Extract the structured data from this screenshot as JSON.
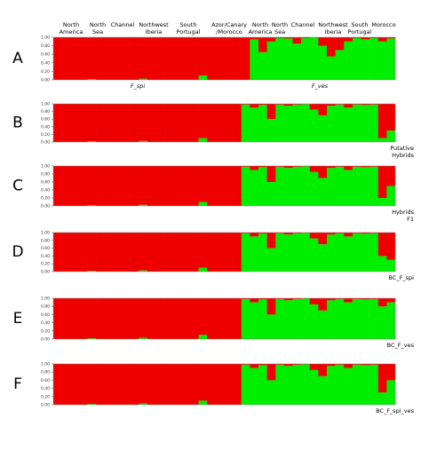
{
  "header": {
    "populations": [
      {
        "lines": [
          "North",
          "America"
        ]
      },
      {
        "lines": [
          "North",
          "Sea"
        ]
      },
      {
        "lines": [
          "Channel"
        ]
      },
      {
        "lines": [
          "Northwest",
          "Iberia"
        ]
      },
      {
        "lines": [
          "South",
          "Portugal"
        ]
      },
      {
        "lines": [
          "Azor/Canary",
          "/Morocco"
        ]
      },
      {
        "lines": [
          "North",
          "America"
        ]
      },
      {
        "lines": [
          "North",
          "Sea"
        ]
      },
      {
        "lines": [
          "Channel"
        ]
      },
      {
        "lines": [
          "Northwest",
          "Iberia"
        ]
      },
      {
        "lines": [
          "South",
          "Portugal"
        ]
      },
      {
        "lines": [
          "Morocco"
        ]
      }
    ]
  },
  "chart_data": [
    {
      "type": "bar",
      "stacked": true,
      "panel_label": "A",
      "group_labels": [
        {
          "lines": [
            "F_spi"
          ]
        },
        {
          "lines": [
            "F_ves"
          ]
        }
      ],
      "ylim": [
        0,
        1
      ],
      "yticks": [
        {
          "value": 0,
          "label": "0.00"
        },
        {
          "value": 0.2,
          "label": "0.20"
        },
        {
          "value": 0.4,
          "label": "0.40"
        },
        {
          "value": 0.6,
          "label": "0.60"
        },
        {
          "value": 0.8,
          "label": "0.80"
        },
        {
          "value": 1,
          "label": "1.00"
        }
      ],
      "series": [
        {
          "color": "#00ee00",
          "values": [
            0,
            0,
            0,
            0,
            0.02,
            0,
            0,
            0,
            0,
            0,
            0.03,
            0,
            0,
            0,
            0,
            0,
            0,
            0.1,
            0,
            0,
            0,
            0,
            0,
            0.95,
            0.65,
            0.9,
            0.98,
            0.97,
            0.85,
            0.98,
            0.99,
            0.8,
            0.55,
            0.7,
            0.9,
            0.98,
            0.95,
            0.98,
            0.9,
            0.97
          ]
        },
        {
          "color": "#ee0000",
          "values": [
            1,
            1,
            1,
            1,
            0.98,
            1,
            1,
            1,
            1,
            1,
            0.97,
            1,
            1,
            1,
            1,
            1,
            1,
            0.9,
            1,
            1,
            1,
            1,
            1,
            0.05,
            0.35,
            0.1,
            0.02,
            0.03,
            0.15,
            0.02,
            0.01,
            0.2,
            0.45,
            0.3,
            0.1,
            0.02,
            0.05,
            0.02,
            0.1,
            0.03
          ]
        }
      ]
    },
    {
      "type": "bar",
      "stacked": true,
      "panel_label": "B",
      "group_labels": [
        {
          "lines": [
            "Putative",
            "Hybrids"
          ]
        }
      ],
      "ylim": [
        0,
        1
      ],
      "yticks": [
        {
          "value": 0,
          "label": "0.00"
        },
        {
          "value": 0.2,
          "label": "0.20"
        },
        {
          "value": 0.4,
          "label": "0.40"
        },
        {
          "value": 0.6,
          "label": "0.60"
        },
        {
          "value": 0.8,
          "label": "0.80"
        },
        {
          "value": 1,
          "label": "1.00"
        }
      ],
      "series": [
        {
          "color": "#00ee00",
          "values": [
            0,
            0,
            0,
            0,
            0.02,
            0,
            0,
            0,
            0,
            0,
            0.03,
            0,
            0,
            0,
            0,
            0,
            0,
            0.1,
            0,
            0,
            0,
            0,
            0.98,
            0.9,
            0.97,
            0.6,
            0.98,
            0.95,
            0.98,
            0.99,
            0.85,
            0.7,
            0.95,
            0.98,
            0.9,
            0.98,
            0.97,
            0.98,
            0.1,
            0.3
          ]
        },
        {
          "color": "#ee0000",
          "values": [
            1,
            1,
            1,
            1,
            0.98,
            1,
            1,
            1,
            1,
            1,
            0.97,
            1,
            1,
            1,
            1,
            1,
            1,
            0.9,
            1,
            1,
            1,
            1,
            0.02,
            0.1,
            0.03,
            0.4,
            0.02,
            0.05,
            0.02,
            0.01,
            0.15,
            0.3,
            0.05,
            0.02,
            0.1,
            0.02,
            0.03,
            0.02,
            0.9,
            0.7
          ]
        }
      ]
    },
    {
      "type": "bar",
      "stacked": true,
      "panel_label": "C",
      "group_labels": [
        {
          "lines": [
            "Hybrids",
            "F1"
          ]
        }
      ],
      "ylim": [
        0,
        1
      ],
      "yticks": [
        {
          "value": 0,
          "label": "0.00"
        },
        {
          "value": 0.2,
          "label": "0.20"
        },
        {
          "value": 0.4,
          "label": "0.40"
        },
        {
          "value": 0.6,
          "label": "0.60"
        },
        {
          "value": 0.8,
          "label": "0.80"
        },
        {
          "value": 1,
          "label": "1.00"
        }
      ],
      "series": [
        {
          "color": "#00ee00",
          "values": [
            0,
            0,
            0,
            0,
            0.02,
            0,
            0,
            0,
            0,
            0,
            0.03,
            0,
            0,
            0,
            0,
            0,
            0,
            0.1,
            0,
            0,
            0,
            0,
            0.98,
            0.9,
            0.97,
            0.6,
            0.98,
            0.95,
            0.98,
            0.99,
            0.85,
            0.7,
            0.95,
            0.98,
            0.9,
            0.98,
            0.97,
            0.98,
            0.2,
            0.5
          ]
        },
        {
          "color": "#ee0000",
          "values": [
            1,
            1,
            1,
            1,
            0.98,
            1,
            1,
            1,
            1,
            1,
            0.97,
            1,
            1,
            1,
            1,
            1,
            1,
            0.9,
            1,
            1,
            1,
            1,
            0.02,
            0.1,
            0.03,
            0.4,
            0.02,
            0.05,
            0.02,
            0.01,
            0.15,
            0.3,
            0.05,
            0.02,
            0.1,
            0.02,
            0.03,
            0.02,
            0.8,
            0.5
          ]
        }
      ]
    },
    {
      "type": "bar",
      "stacked": true,
      "panel_label": "D",
      "group_labels": [
        {
          "lines": [
            "BC_F_spi"
          ]
        }
      ],
      "ylim": [
        0,
        1
      ],
      "yticks": [
        {
          "value": 0,
          "label": "0.00"
        },
        {
          "value": 0.2,
          "label": "0.20"
        },
        {
          "value": 0.4,
          "label": "0.40"
        },
        {
          "value": 0.6,
          "label": "0.60"
        },
        {
          "value": 0.8,
          "label": "0.80"
        },
        {
          "value": 1,
          "label": "1.00"
        }
      ],
      "series": [
        {
          "color": "#00ee00",
          "values": [
            0,
            0,
            0,
            0,
            0.02,
            0,
            0,
            0,
            0,
            0,
            0.03,
            0,
            0,
            0,
            0,
            0,
            0,
            0.1,
            0,
            0,
            0,
            0,
            0.98,
            0.9,
            0.97,
            0.6,
            0.98,
            0.95,
            0.98,
            0.99,
            0.85,
            0.7,
            0.95,
            0.98,
            0.9,
            0.98,
            0.97,
            0.98,
            0.4,
            0.3
          ]
        },
        {
          "color": "#ee0000",
          "values": [
            1,
            1,
            1,
            1,
            0.98,
            1,
            1,
            1,
            1,
            1,
            0.97,
            1,
            1,
            1,
            1,
            1,
            1,
            0.9,
            1,
            1,
            1,
            1,
            0.02,
            0.1,
            0.03,
            0.4,
            0.02,
            0.05,
            0.02,
            0.01,
            0.15,
            0.3,
            0.05,
            0.02,
            0.1,
            0.02,
            0.03,
            0.02,
            0.6,
            0.7
          ]
        }
      ]
    },
    {
      "type": "bar",
      "stacked": true,
      "panel_label": "E",
      "group_labels": [
        {
          "lines": [
            "BC_F_ves"
          ]
        }
      ],
      "ylim": [
        0,
        1
      ],
      "yticks": [
        {
          "value": 0,
          "label": "0.00"
        },
        {
          "value": 0.2,
          "label": "0.20"
        },
        {
          "value": 0.4,
          "label": "0.40"
        },
        {
          "value": 0.6,
          "label": "0.60"
        },
        {
          "value": 0.8,
          "label": "0.80"
        },
        {
          "value": 1,
          "label": "1.00"
        }
      ],
      "series": [
        {
          "color": "#00ee00",
          "values": [
            0,
            0,
            0,
            0,
            0.02,
            0,
            0,
            0,
            0,
            0,
            0.03,
            0,
            0,
            0,
            0,
            0,
            0,
            0.1,
            0,
            0,
            0,
            0,
            0.98,
            0.9,
            0.97,
            0.6,
            0.98,
            0.95,
            0.98,
            0.99,
            0.85,
            0.7,
            0.95,
            0.98,
            0.9,
            0.98,
            0.97,
            0.98,
            0.8,
            0.9
          ]
        },
        {
          "color": "#ee0000",
          "values": [
            1,
            1,
            1,
            1,
            0.98,
            1,
            1,
            1,
            1,
            1,
            0.97,
            1,
            1,
            1,
            1,
            1,
            1,
            0.9,
            1,
            1,
            1,
            1,
            0.02,
            0.1,
            0.03,
            0.4,
            0.02,
            0.05,
            0.02,
            0.01,
            0.15,
            0.3,
            0.05,
            0.02,
            0.1,
            0.02,
            0.03,
            0.02,
            0.2,
            0.1
          ]
        }
      ]
    },
    {
      "type": "bar",
      "stacked": true,
      "panel_label": "F",
      "group_labels": [
        {
          "lines": [
            "BC_F_spi_ves"
          ]
        }
      ],
      "ylim": [
        0,
        1
      ],
      "yticks": [
        {
          "value": 0,
          "label": "0.00"
        },
        {
          "value": 0.2,
          "label": "0.20"
        },
        {
          "value": 0.4,
          "label": "0.40"
        },
        {
          "value": 0.6,
          "label": "0.60"
        },
        {
          "value": 0.8,
          "label": "0.80"
        },
        {
          "value": 1,
          "label": "1.00"
        }
      ],
      "series": [
        {
          "color": "#00ee00",
          "values": [
            0,
            0,
            0,
            0,
            0.02,
            0,
            0,
            0,
            0,
            0,
            0.03,
            0,
            0,
            0,
            0,
            0,
            0,
            0.1,
            0,
            0,
            0,
            0,
            0.98,
            0.9,
            0.97,
            0.6,
            0.98,
            0.95,
            0.98,
            0.99,
            0.85,
            0.7,
            0.95,
            0.98,
            0.9,
            0.98,
            0.97,
            0.98,
            0.3,
            0.6
          ]
        },
        {
          "color": "#ee0000",
          "values": [
            1,
            1,
            1,
            1,
            0.98,
            1,
            1,
            1,
            1,
            1,
            0.97,
            1,
            1,
            1,
            1,
            1,
            1,
            0.9,
            1,
            1,
            1,
            1,
            0.02,
            0.1,
            0.03,
            0.4,
            0.02,
            0.05,
            0.02,
            0.01,
            0.15,
            0.3,
            0.05,
            0.02,
            0.1,
            0.02,
            0.03,
            0.02,
            0.7,
            0.4
          ]
        }
      ]
    }
  ]
}
